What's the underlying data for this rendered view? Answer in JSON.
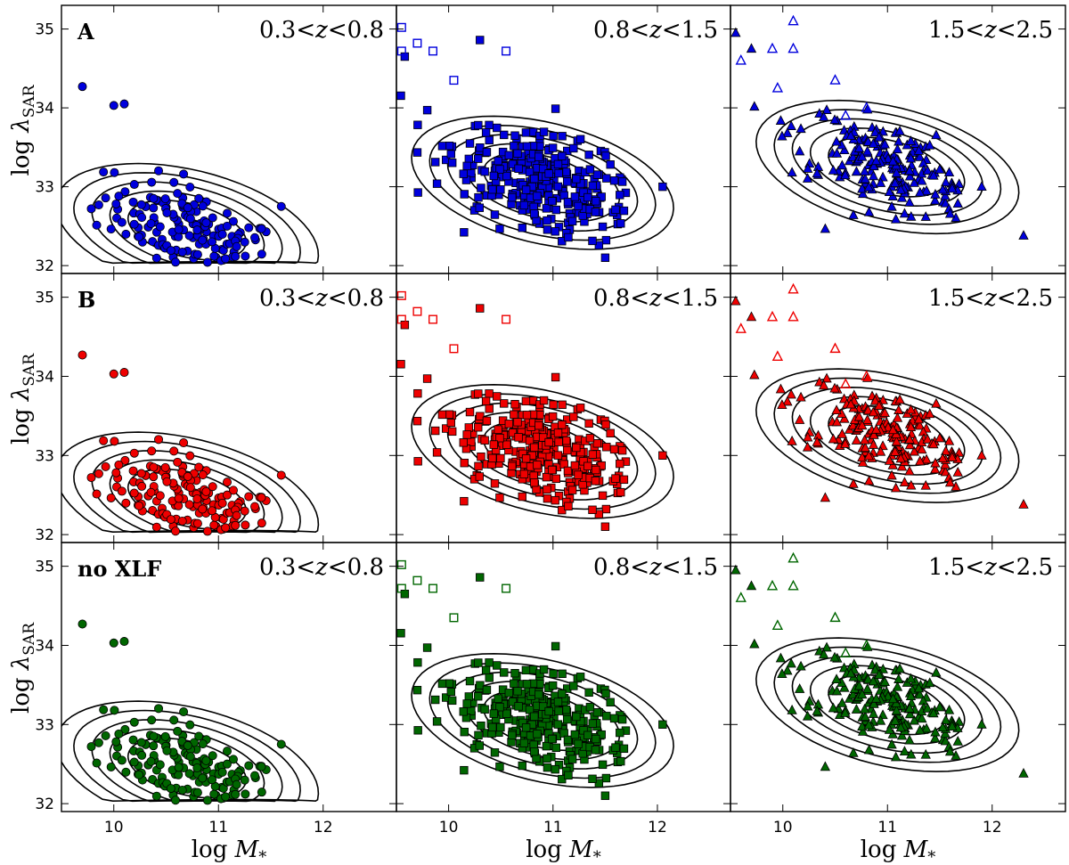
{
  "chart_data": {
    "type": "scatter",
    "layout": "3x3 grid of panels",
    "xlabel": "log M*",
    "ylabel": "log λSAR",
    "xlim": [
      9.5,
      12.7
    ],
    "ylim": [
      31.9,
      35.3
    ],
    "xticks": [
      10,
      11,
      12
    ],
    "yticks": [
      32,
      33,
      34,
      35
    ],
    "xtick_labels": [
      "10",
      "11",
      "12"
    ],
    "ytick_labels": [
      "32",
      "33",
      "34",
      "35"
    ],
    "axis_labels": {
      "x_prefix": "log ",
      "x_var": "M",
      "x_sub": "*",
      "y_prefix": "log ",
      "y_var": "λ",
      "y_sub": "SAR"
    },
    "rows": [
      {
        "label": "A",
        "color": "#0000dd"
      },
      {
        "label": "B",
        "color": "#ee0000"
      },
      {
        "label": "no XLF",
        "color": "#006600"
      }
    ],
    "columns": [
      {
        "label_lo": "0.3",
        "label_hi": "0.8",
        "marker": "circle",
        "var": "z",
        "center": [
          10.7,
          32.45
        ],
        "n_points": 150
      },
      {
        "label_lo": "0.8",
        "label_hi": "1.5",
        "marker": "square",
        "var": "z",
        "center": [
          10.9,
          33.05
        ],
        "n_points": 320
      },
      {
        "label_lo": "1.5",
        "label_hi": "2.5",
        "marker": "triangle",
        "var": "z",
        "center": [
          11.0,
          33.25
        ],
        "n_points": 200
      }
    ],
    "contour_levels": 5,
    "highlight_points": [
      [
        [
          9.7,
          34.27
        ],
        [
          10.0,
          34.03
        ],
        [
          10.1,
          34.05
        ],
        [
          11.6,
          32.75
        ]
      ],
      [
        [
          9.58,
          34.65
        ],
        [
          10.3,
          34.86
        ],
        [
          12.05,
          33.0
        ],
        [
          11.5,
          32.1
        ]
      ],
      [
        [
          9.55,
          34.95
        ],
        [
          9.7,
          34.75
        ],
        [
          11.9,
          33.0
        ],
        [
          12.3,
          32.38
        ]
      ]
    ],
    "open_points": [
      [],
      [
        [
          9.55,
          35.02
        ],
        [
          9.55,
          34.72
        ],
        [
          9.7,
          34.82
        ],
        [
          9.85,
          34.72
        ],
        [
          10.05,
          34.35
        ],
        [
          10.55,
          34.72
        ]
      ],
      [
        [
          9.6,
          34.6
        ],
        [
          9.9,
          34.75
        ],
        [
          10.1,
          35.1
        ],
        [
          10.1,
          34.75
        ],
        [
          9.95,
          34.25
        ],
        [
          10.5,
          34.35
        ],
        [
          10.8,
          34.0
        ],
        [
          10.6,
          33.9
        ]
      ]
    ]
  }
}
